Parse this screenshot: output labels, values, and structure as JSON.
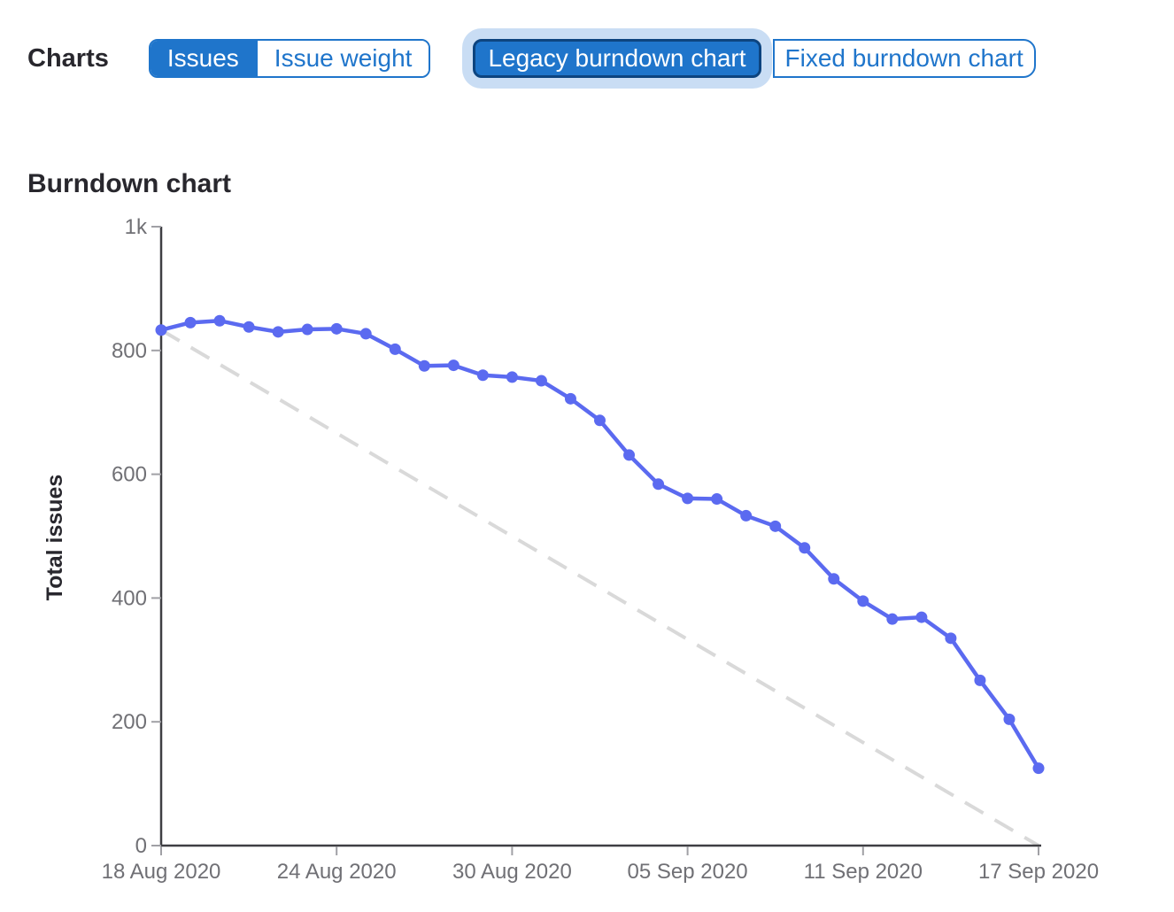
{
  "toolbar": {
    "charts_label": "Charts",
    "metric_toggle": {
      "options": [
        {
          "label": "Issues",
          "selected": true
        },
        {
          "label": "Issue weight",
          "selected": false
        }
      ]
    },
    "type_toggle": {
      "options": [
        {
          "label": "Legacy burndown chart",
          "selected": true,
          "focused": true
        },
        {
          "label": "Fixed burndown chart",
          "selected": false
        }
      ]
    }
  },
  "section": {
    "title": "Burndown chart"
  },
  "colors": {
    "accent_blue": "#1f75cb",
    "selected_border": "#0d447f",
    "focus_ring": "#c9ddf4",
    "dark_text": "#28272d",
    "axis_line": "#3f3f43",
    "tick_mark": "#a0a0a5",
    "tick_label": "#707075",
    "series_blue": "#5b6af0",
    "guideline_gray": "#d9d9d9"
  },
  "chart_data": {
    "type": "line",
    "title": "Burndown chart",
    "xlabel": "",
    "ylabel": "Total issues",
    "ylim": [
      0,
      1000
    ],
    "x_range_days": [
      0,
      30
    ],
    "grid": false,
    "legend_position": "none",
    "y_ticks": [
      {
        "value": 0,
        "label": "0"
      },
      {
        "value": 200,
        "label": "200"
      },
      {
        "value": 400,
        "label": "400"
      },
      {
        "value": 600,
        "label": "600"
      },
      {
        "value": 800,
        "label": "800"
      },
      {
        "value": 1000,
        "label": "1k"
      }
    ],
    "x_ticks": [
      {
        "day": 0,
        "label": "18 Aug 2020"
      },
      {
        "day": 6,
        "label": "24 Aug 2020"
      },
      {
        "day": 12,
        "label": "30 Aug 2020"
      },
      {
        "day": 18,
        "label": "05 Sep 2020"
      },
      {
        "day": 24,
        "label": "11 Sep 2020"
      },
      {
        "day": 30,
        "label": "17 Sep 2020"
      }
    ],
    "series": [
      {
        "name": "Total issues remaining",
        "style": "solid",
        "markers": true,
        "color": "#5b6af0",
        "days": [
          0,
          1,
          2,
          3,
          4,
          5,
          6,
          7,
          8,
          9,
          10,
          11,
          12,
          13,
          14,
          15,
          16,
          17,
          18,
          19,
          20,
          21,
          22,
          23,
          24,
          25,
          26,
          27,
          28,
          29,
          30
        ],
        "values": [
          833,
          845,
          848,
          838,
          830,
          834,
          835,
          827,
          802,
          775,
          776,
          760,
          757,
          751,
          722,
          687,
          631,
          584,
          561,
          560,
          533,
          516,
          481,
          431,
          395,
          366,
          369,
          335,
          267,
          204,
          125
        ]
      },
      {
        "name": "Ideal guideline",
        "style": "dashed",
        "markers": false,
        "color": "#d9d9d9",
        "days": [
          0,
          30
        ],
        "values": [
          833,
          0
        ]
      }
    ]
  }
}
